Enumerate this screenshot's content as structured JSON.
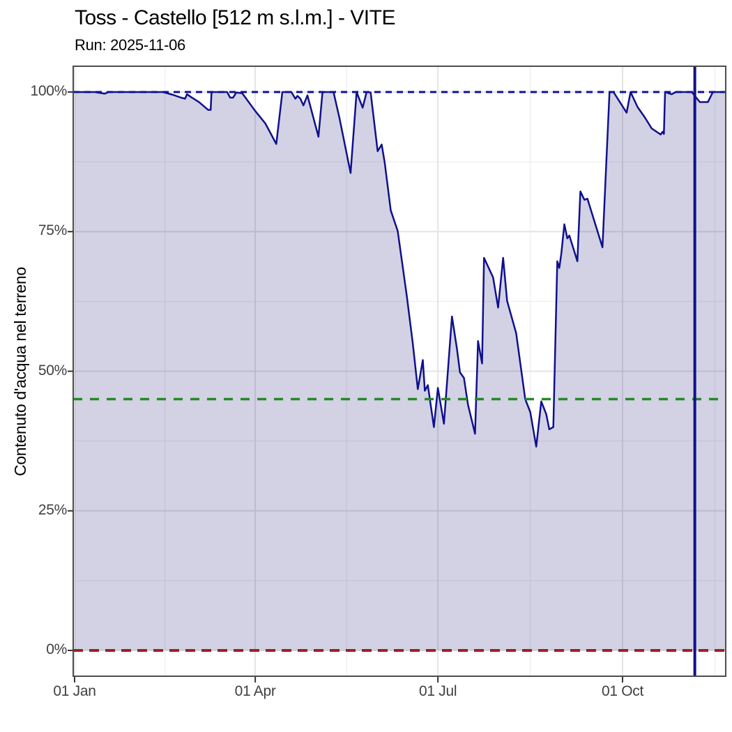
{
  "chart_data": {
    "type": "area",
    "title": "Toss - Castello [512 m s.l.m.] - VITE",
    "subtitle": "Run: 2025-11-06",
    "ylabel": "Contenuto d'acqua nel terreno",
    "xlabel": "",
    "grid": true,
    "legend": "none",
    "x_axis": {
      "unit": "day_of_year_2025",
      "range_days": [
        -0.7,
        324.5
      ],
      "ticks": [
        {
          "day": 0,
          "label": "01 Jan"
        },
        {
          "day": 90,
          "label": "01 Apr"
        },
        {
          "day": 181,
          "label": "01 Jul"
        },
        {
          "day": 273,
          "label": "01 Oct"
        }
      ],
      "minor_days": [
        45,
        135.5,
        227,
        319
      ]
    },
    "y_axis": {
      "unit": "percent",
      "range": [
        -4.7,
        104.7
      ],
      "ticks": [
        {
          "value": 0,
          "label": "0%"
        },
        {
          "value": 25,
          "label": "25%"
        },
        {
          "value": 50,
          "label": "50%"
        },
        {
          "value": 75,
          "label": "75%"
        },
        {
          "value": 100,
          "label": "100%"
        }
      ],
      "minor_values": [
        12.5,
        37.5,
        62.5,
        87.5
      ]
    },
    "reference_lines": {
      "horizontal": [
        {
          "name": "saturation-line",
          "value": 100,
          "color": "#10109c",
          "style": "dashed",
          "width": 3,
          "dash": "9,7"
        },
        {
          "name": "threshold-line",
          "value": 45,
          "color": "#228B22",
          "style": "dashed",
          "width": 3.5,
          "dash": "13,11"
        },
        {
          "name": "zero-line",
          "value": 0,
          "color": "#9b2222",
          "style": "dashed",
          "width": 4,
          "dash": "14,9"
        }
      ],
      "vertical": [
        {
          "name": "run-date-line",
          "day": 309,
          "color": "#10108c",
          "style": "solid",
          "width": 4
        }
      ]
    },
    "colors": {
      "series_line": "#10108c",
      "series_fill": "rgba(30,30,120,0.2)",
      "grid_major": "#e4e4e4",
      "grid_minor": "#f0f0f0",
      "panel_border": "#4d4d4d",
      "tick_mark": "#333333",
      "tick_label": "#404040"
    },
    "series": [
      {
        "name": "soil-water-content",
        "fill_to": 0,
        "points": [
          [
            0,
            100
          ],
          [
            10,
            100
          ],
          [
            15,
            99.7
          ],
          [
            17,
            100
          ],
          [
            30,
            100
          ],
          [
            44,
            100
          ],
          [
            49,
            99.5
          ],
          [
            53,
            99
          ],
          [
            55,
            98.8
          ],
          [
            56,
            99.6
          ],
          [
            58,
            99.1
          ],
          [
            62,
            98.2
          ],
          [
            66.5,
            96.8
          ],
          [
            67.8,
            96.8
          ],
          [
            68.2,
            100
          ],
          [
            76,
            100
          ],
          [
            77.5,
            99
          ],
          [
            79,
            99
          ],
          [
            80.5,
            99.9
          ],
          [
            83.5,
            99.8
          ],
          [
            90,
            96.6
          ],
          [
            95,
            94.4
          ],
          [
            100.5,
            90.7
          ],
          [
            103.5,
            100
          ],
          [
            108,
            100
          ],
          [
            110,
            98.8
          ],
          [
            111,
            99.3
          ],
          [
            112.5,
            98.8
          ],
          [
            114,
            97.6
          ],
          [
            116,
            99.4
          ],
          [
            121.5,
            92
          ],
          [
            123.5,
            100
          ],
          [
            129,
            100
          ],
          [
            132,
            95.3
          ],
          [
            137.5,
            85.5
          ],
          [
            140.5,
            100
          ],
          [
            143.5,
            97.2
          ],
          [
            145.5,
            100
          ],
          [
            147.5,
            99.9
          ],
          [
            151,
            89.4
          ],
          [
            153,
            90.6
          ],
          [
            154.5,
            87.4
          ],
          [
            157.5,
            78.8
          ],
          [
            161,
            75.1
          ],
          [
            165.5,
            63.5
          ],
          [
            168.5,
            55
          ],
          [
            171,
            46.8
          ],
          [
            173.5,
            52
          ],
          [
            174.5,
            46.5
          ],
          [
            176,
            47.5
          ],
          [
            179,
            40
          ],
          [
            181,
            47
          ],
          [
            184,
            40.6
          ],
          [
            188,
            59.8
          ],
          [
            190.5,
            54
          ],
          [
            192,
            49.8
          ],
          [
            194,
            48.8
          ],
          [
            196,
            44
          ],
          [
            199.5,
            38.8
          ],
          [
            201,
            55.4
          ],
          [
            203,
            51.4
          ],
          [
            204,
            70.3
          ],
          [
            208.5,
            66.8
          ],
          [
            211,
            61.4
          ],
          [
            213.5,
            70.3
          ],
          [
            215.5,
            62.6
          ],
          [
            220,
            56.8
          ],
          [
            224.5,
            45
          ],
          [
            227,
            42.7
          ],
          [
            230,
            36.5
          ],
          [
            232.5,
            44.6
          ],
          [
            235,
            42.3
          ],
          [
            236.5,
            39.6
          ],
          [
            238.5,
            40
          ],
          [
            240.5,
            69.7
          ],
          [
            241.5,
            68.5
          ],
          [
            242.5,
            71.1
          ],
          [
            244,
            76.3
          ],
          [
            245.5,
            73.8
          ],
          [
            246.5,
            74.3
          ],
          [
            250.5,
            69.7
          ],
          [
            252,
            82.2
          ],
          [
            254,
            80.7
          ],
          [
            255.5,
            80.9
          ],
          [
            263,
            72.2
          ],
          [
            266.5,
            100
          ],
          [
            268.5,
            100
          ],
          [
            275,
            96.3
          ],
          [
            277,
            100
          ],
          [
            280.5,
            97.3
          ],
          [
            284,
            95.5
          ],
          [
            287.5,
            93.5
          ],
          [
            289.5,
            93
          ],
          [
            292,
            92.4
          ],
          [
            293,
            92.9
          ],
          [
            293.6,
            92.5
          ],
          [
            294.2,
            100
          ],
          [
            297.5,
            99.6
          ],
          [
            299.5,
            100
          ],
          [
            307.5,
            100
          ],
          [
            311.5,
            98.2
          ],
          [
            315.5,
            98.2
          ],
          [
            318,
            100
          ],
          [
            324.4,
            100
          ]
        ]
      }
    ]
  }
}
